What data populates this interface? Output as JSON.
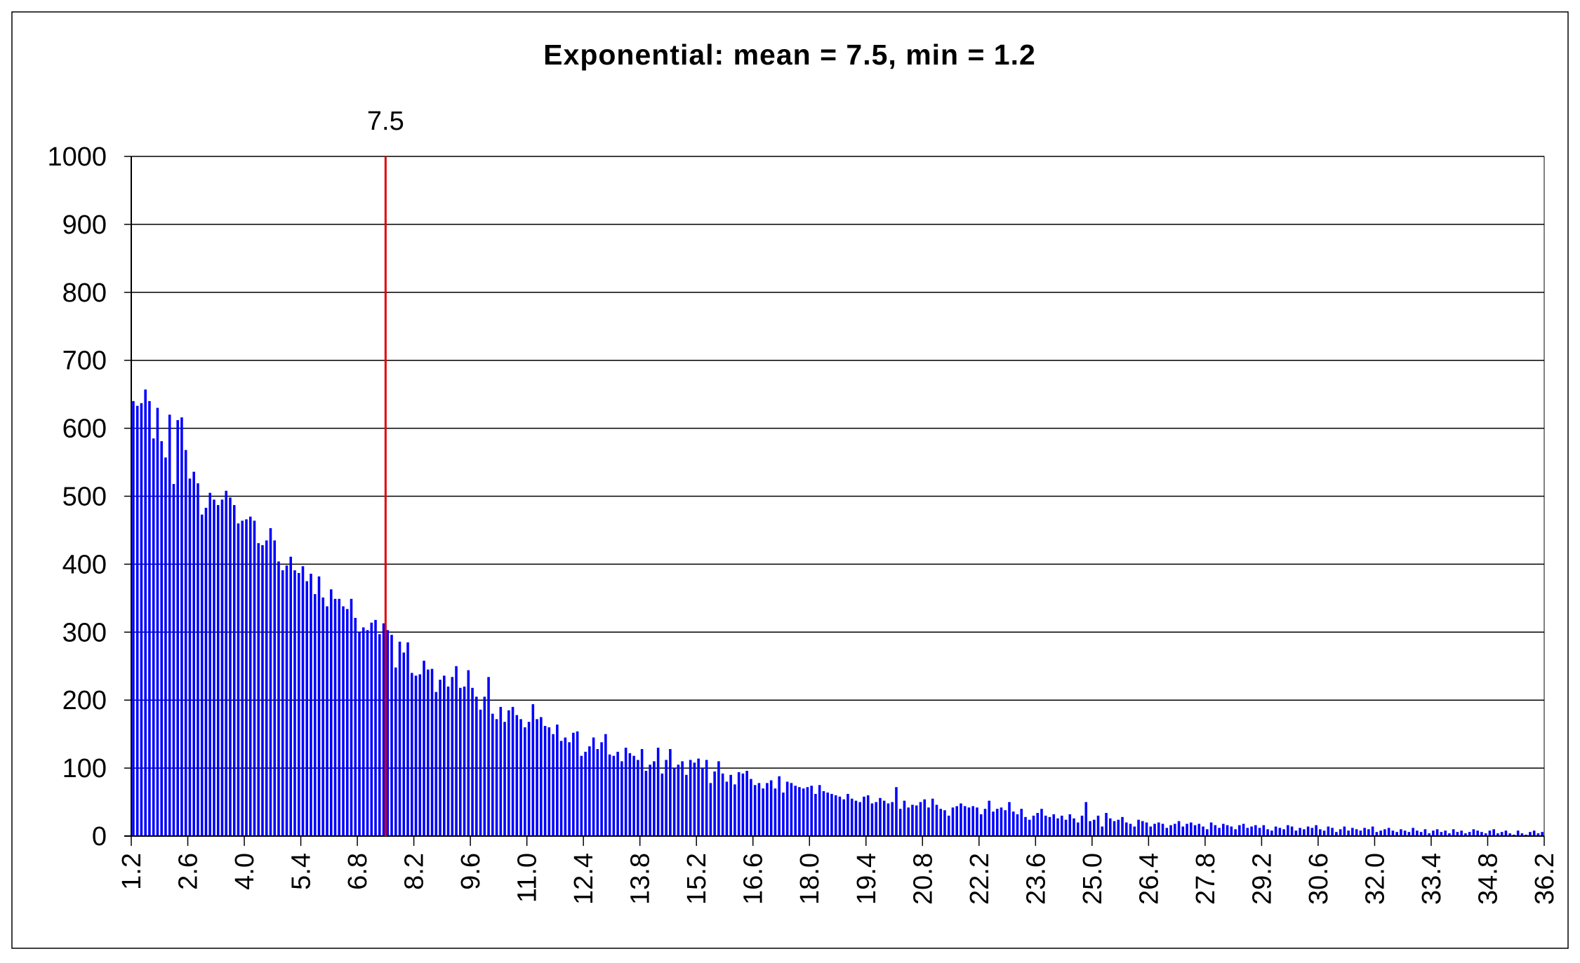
{
  "chart_data": {
    "type": "bar",
    "title": "Exponential: mean = 7.5, min = 1.2",
    "xlabel": "",
    "ylabel": "",
    "x_start": 1.2,
    "bin_width": 0.1,
    "ylim": [
      0,
      1000
    ],
    "y_ticks": [
      "0",
      "100",
      "200",
      "300",
      "400",
      "500",
      "600",
      "700",
      "800",
      "900",
      "1000"
    ],
    "x_tick_labels": [
      "1.2",
      "2.6",
      "4.0",
      "5.4",
      "6.8",
      "8.2",
      "9.6",
      "11.0",
      "12.4",
      "13.8",
      "15.2",
      "16.6",
      "18.0",
      "19.4",
      "20.8",
      "22.2",
      "23.6",
      "25.0",
      "26.4",
      "27.8",
      "29.2",
      "30.6",
      "32.0",
      "33.4",
      "34.8",
      "36.2"
    ],
    "x_tick_every_bins": 14,
    "grid": true,
    "bar_color": "#0000FF",
    "marker": {
      "value": 7.5,
      "label": "7.5",
      "color": "#E00000"
    },
    "values": [
      640,
      633,
      637,
      657,
      640,
      585,
      630,
      581,
      557,
      620,
      518,
      612,
      616,
      568,
      526,
      536,
      519,
      473,
      483,
      505,
      495,
      487,
      495,
      508,
      498,
      487,
      460,
      464,
      466,
      470,
      464,
      431,
      428,
      435,
      453,
      435,
      404,
      391,
      398,
      411,
      391,
      387,
      397,
      375,
      386,
      356,
      382,
      351,
      338,
      363,
      349,
      349,
      338,
      334,
      349,
      321,
      300,
      307,
      303,
      314,
      318,
      297,
      313,
      303,
      296,
      248,
      286,
      270,
      285,
      240,
      236,
      238,
      258,
      245,
      246,
      212,
      230,
      236,
      220,
      234,
      250,
      218,
      220,
      244,
      218,
      205,
      186,
      205,
      234,
      180,
      172,
      190,
      168,
      185,
      190,
      178,
      172,
      160,
      168,
      194,
      172,
      175,
      162,
      160,
      150,
      164,
      140,
      145,
      138,
      152,
      154,
      118,
      124,
      132,
      145,
      128,
      138,
      150,
      120,
      118,
      124,
      110,
      130,
      122,
      118,
      112,
      128,
      96,
      105,
      110,
      130,
      92,
      112,
      128,
      100,
      105,
      110,
      90,
      112,
      108,
      114,
      100,
      112,
      78,
      95,
      110,
      92,
      80,
      90,
      76,
      94,
      92,
      96,
      84,
      75,
      78,
      70,
      78,
      82,
      70,
      88,
      64,
      80,
      78,
      74,
      72,
      70,
      72,
      74,
      62,
      75,
      66,
      64,
      62,
      60,
      58,
      54,
      62,
      55,
      52,
      50,
      58,
      60,
      48,
      50,
      56,
      52,
      48,
      50,
      72,
      40,
      52,
      42,
      46,
      45,
      50,
      54,
      42,
      55,
      46,
      40,
      38,
      30,
      42,
      44,
      48,
      44,
      42,
      44,
      42,
      32,
      40,
      52,
      36,
      40,
      42,
      38,
      50,
      36,
      32,
      40,
      28,
      24,
      30,
      34,
      40,
      30,
      28,
      32,
      26,
      30,
      24,
      32,
      26,
      20,
      30,
      50,
      22,
      24,
      30,
      14,
      34,
      26,
      22,
      24,
      28,
      20,
      18,
      14,
      24,
      22,
      20,
      14,
      18,
      20,
      18,
      12,
      16,
      18,
      22,
      14,
      18,
      20,
      16,
      18,
      14,
      10,
      20,
      16,
      12,
      18,
      16,
      14,
      10,
      16,
      18,
      12,
      14,
      16,
      12,
      16,
      10,
      8,
      14,
      12,
      10,
      16,
      14,
      8,
      12,
      10,
      14,
      12,
      16,
      10,
      8,
      14,
      12,
      6,
      10,
      14,
      8,
      12,
      10,
      8,
      12,
      10,
      14,
      6,
      8,
      10,
      12,
      8,
      6,
      10,
      8,
      6,
      12,
      8,
      6,
      10,
      4,
      8,
      10,
      6,
      8,
      4,
      10,
      6,
      8,
      4,
      6,
      10,
      8,
      6,
      4,
      8,
      10,
      4,
      6,
      8,
      4,
      2,
      8,
      4,
      2,
      6,
      8,
      4,
      6
    ]
  }
}
